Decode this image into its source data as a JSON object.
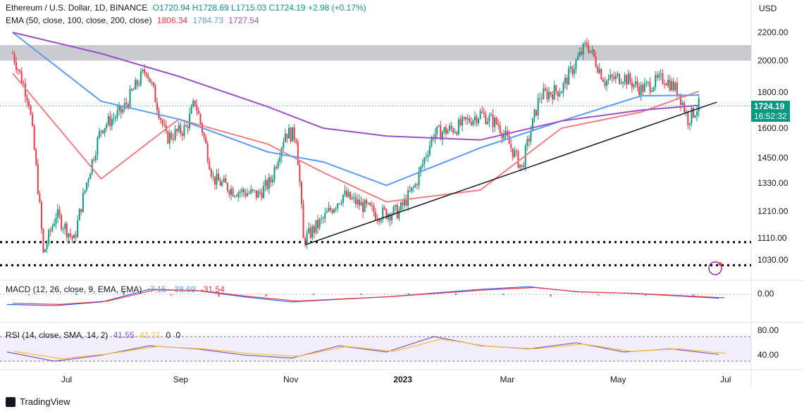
{
  "header": {
    "symbol": "Ethereum / U.S. Dollar, 1D, BINANCE",
    "ohlc": "O1720.94 H1728.69 L1715.03 C1724.19 +2.98 (+0.17%)",
    "ema_label": "EMA (50, close, 100, close, 200, close)",
    "ema50": "1806.34",
    "ema100": "1784.73",
    "ema200": "1727.54"
  },
  "price_axis": {
    "currency": "USD",
    "ticks": [
      "2200.00",
      "2000.00",
      "1800.00",
      "1600.00",
      "1450.00",
      "1330.00",
      "1210.00",
      "1110.00",
      "1030.00"
    ],
    "current_price": "1724.19",
    "countdown": "16:52:32"
  },
  "macd": {
    "label": "MACD (12, 26, close, 9, EMA, EMA)",
    "v1": "-7.15",
    "v2": "-38.69",
    "v3": "-31.54",
    "tick": "0.00"
  },
  "rsi": {
    "label": "RSI (14, close, SMA, 14, 2)",
    "v1": "41.55",
    "v2": "41.21",
    "v3": "0",
    "v4": "0",
    "ticks": [
      "80.00",
      "40.00"
    ]
  },
  "time_axis": [
    "Jul",
    "Sep",
    "Nov",
    "2023",
    "Mar",
    "May",
    "Jul"
  ],
  "footer": {
    "brand": "TradingView"
  },
  "colors": {
    "up": "#089981",
    "down": "#f23645",
    "ema50": "#f77c80",
    "ema100": "#5b9cf6",
    "ema200": "#9c4fc7",
    "zone": "#b2b5be",
    "trend": "#131722"
  },
  "chart_data": {
    "type": "candlestick",
    "xlabel": "",
    "ylabel": "USD",
    "ylim": [
      990,
      2250
    ],
    "levels": {
      "resistance_zone": [
        2000,
        2110
      ],
      "support_1": 1095,
      "support_2": 1010
    },
    "trendline": [
      {
        "x": "2022-11-10",
        "y": 1085
      },
      {
        "x": "2023-06-26",
        "y": 1745
      }
    ],
    "series": [
      {
        "name": "EMA 50",
        "values": [
          1920,
          1350,
          1650,
          1520,
          1380,
          1250,
          1300,
          1600,
          1690,
          1806
        ]
      },
      {
        "name": "EMA 100",
        "values": [
          2200,
          1750,
          1650,
          1480,
          1430,
          1320,
          1500,
          1640,
          1780,
          1784
        ]
      },
      {
        "name": "EMA 200",
        "values": [
          2200,
          2050,
          1900,
          1720,
          1600,
          1560,
          1540,
          1640,
          1700,
          1727
        ]
      }
    ],
    "ema_x": [
      "2022-06-01",
      "2022-07-20",
      "2022-09-01",
      "2022-10-20",
      "2022-11-20",
      "2022-12-25",
      "2023-02-15",
      "2023-04-01",
      "2023-05-15",
      "2023-06-16"
    ],
    "close_path": [
      [
        "2022-06-01",
        2050
      ],
      [
        "2022-06-10",
        1750
      ],
      [
        "2022-06-18",
        1050
      ],
      [
        "2022-06-25",
        1200
      ],
      [
        "2022-07-05",
        1100
      ],
      [
        "2022-07-20",
        1600
      ],
      [
        "2022-08-01",
        1700
      ],
      [
        "2022-08-14",
        1950
      ],
      [
        "2022-08-25",
        1550
      ],
      [
        "2022-09-05",
        1600
      ],
      [
        "2022-09-10",
        1750
      ],
      [
        "2022-09-20",
        1350
      ],
      [
        "2022-10-01",
        1300
      ],
      [
        "2022-10-15",
        1280
      ],
      [
        "2022-10-22",
        1340
      ],
      [
        "2022-10-30",
        1580
      ],
      [
        "2022-11-05",
        1560
      ],
      [
        "2022-11-09",
        1100
      ],
      [
        "2022-11-20",
        1180
      ],
      [
        "2022-12-01",
        1280
      ],
      [
        "2022-12-10",
        1240
      ],
      [
        "2022-12-20",
        1200
      ],
      [
        "2023-01-01",
        1210
      ],
      [
        "2023-01-10",
        1320
      ],
      [
        "2023-01-20",
        1570
      ],
      [
        "2023-02-01",
        1600
      ],
      [
        "2023-02-15",
        1680
      ],
      [
        "2023-02-25",
        1620
      ],
      [
        "2023-03-10",
        1400
      ],
      [
        "2023-03-20",
        1780
      ],
      [
        "2023-04-01",
        1820
      ],
      [
        "2023-04-15",
        2120
      ],
      [
        "2023-04-25",
        1870
      ],
      [
        "2023-05-05",
        1900
      ],
      [
        "2023-05-15",
        1820
      ],
      [
        "2023-05-28",
        1890
      ],
      [
        "2023-06-05",
        1800
      ],
      [
        "2023-06-10",
        1650
      ],
      [
        "2023-06-16",
        1724
      ]
    ],
    "macd_values": [
      -80,
      -90,
      -60,
      40,
      30,
      -20,
      -60,
      -40,
      -20,
      10,
      40,
      60,
      20,
      10,
      -10,
      -31
    ],
    "rsi_values": [
      45,
      30,
      40,
      55,
      50,
      40,
      35,
      55,
      45,
      70,
      55,
      50,
      60,
      45,
      50,
      41
    ]
  }
}
